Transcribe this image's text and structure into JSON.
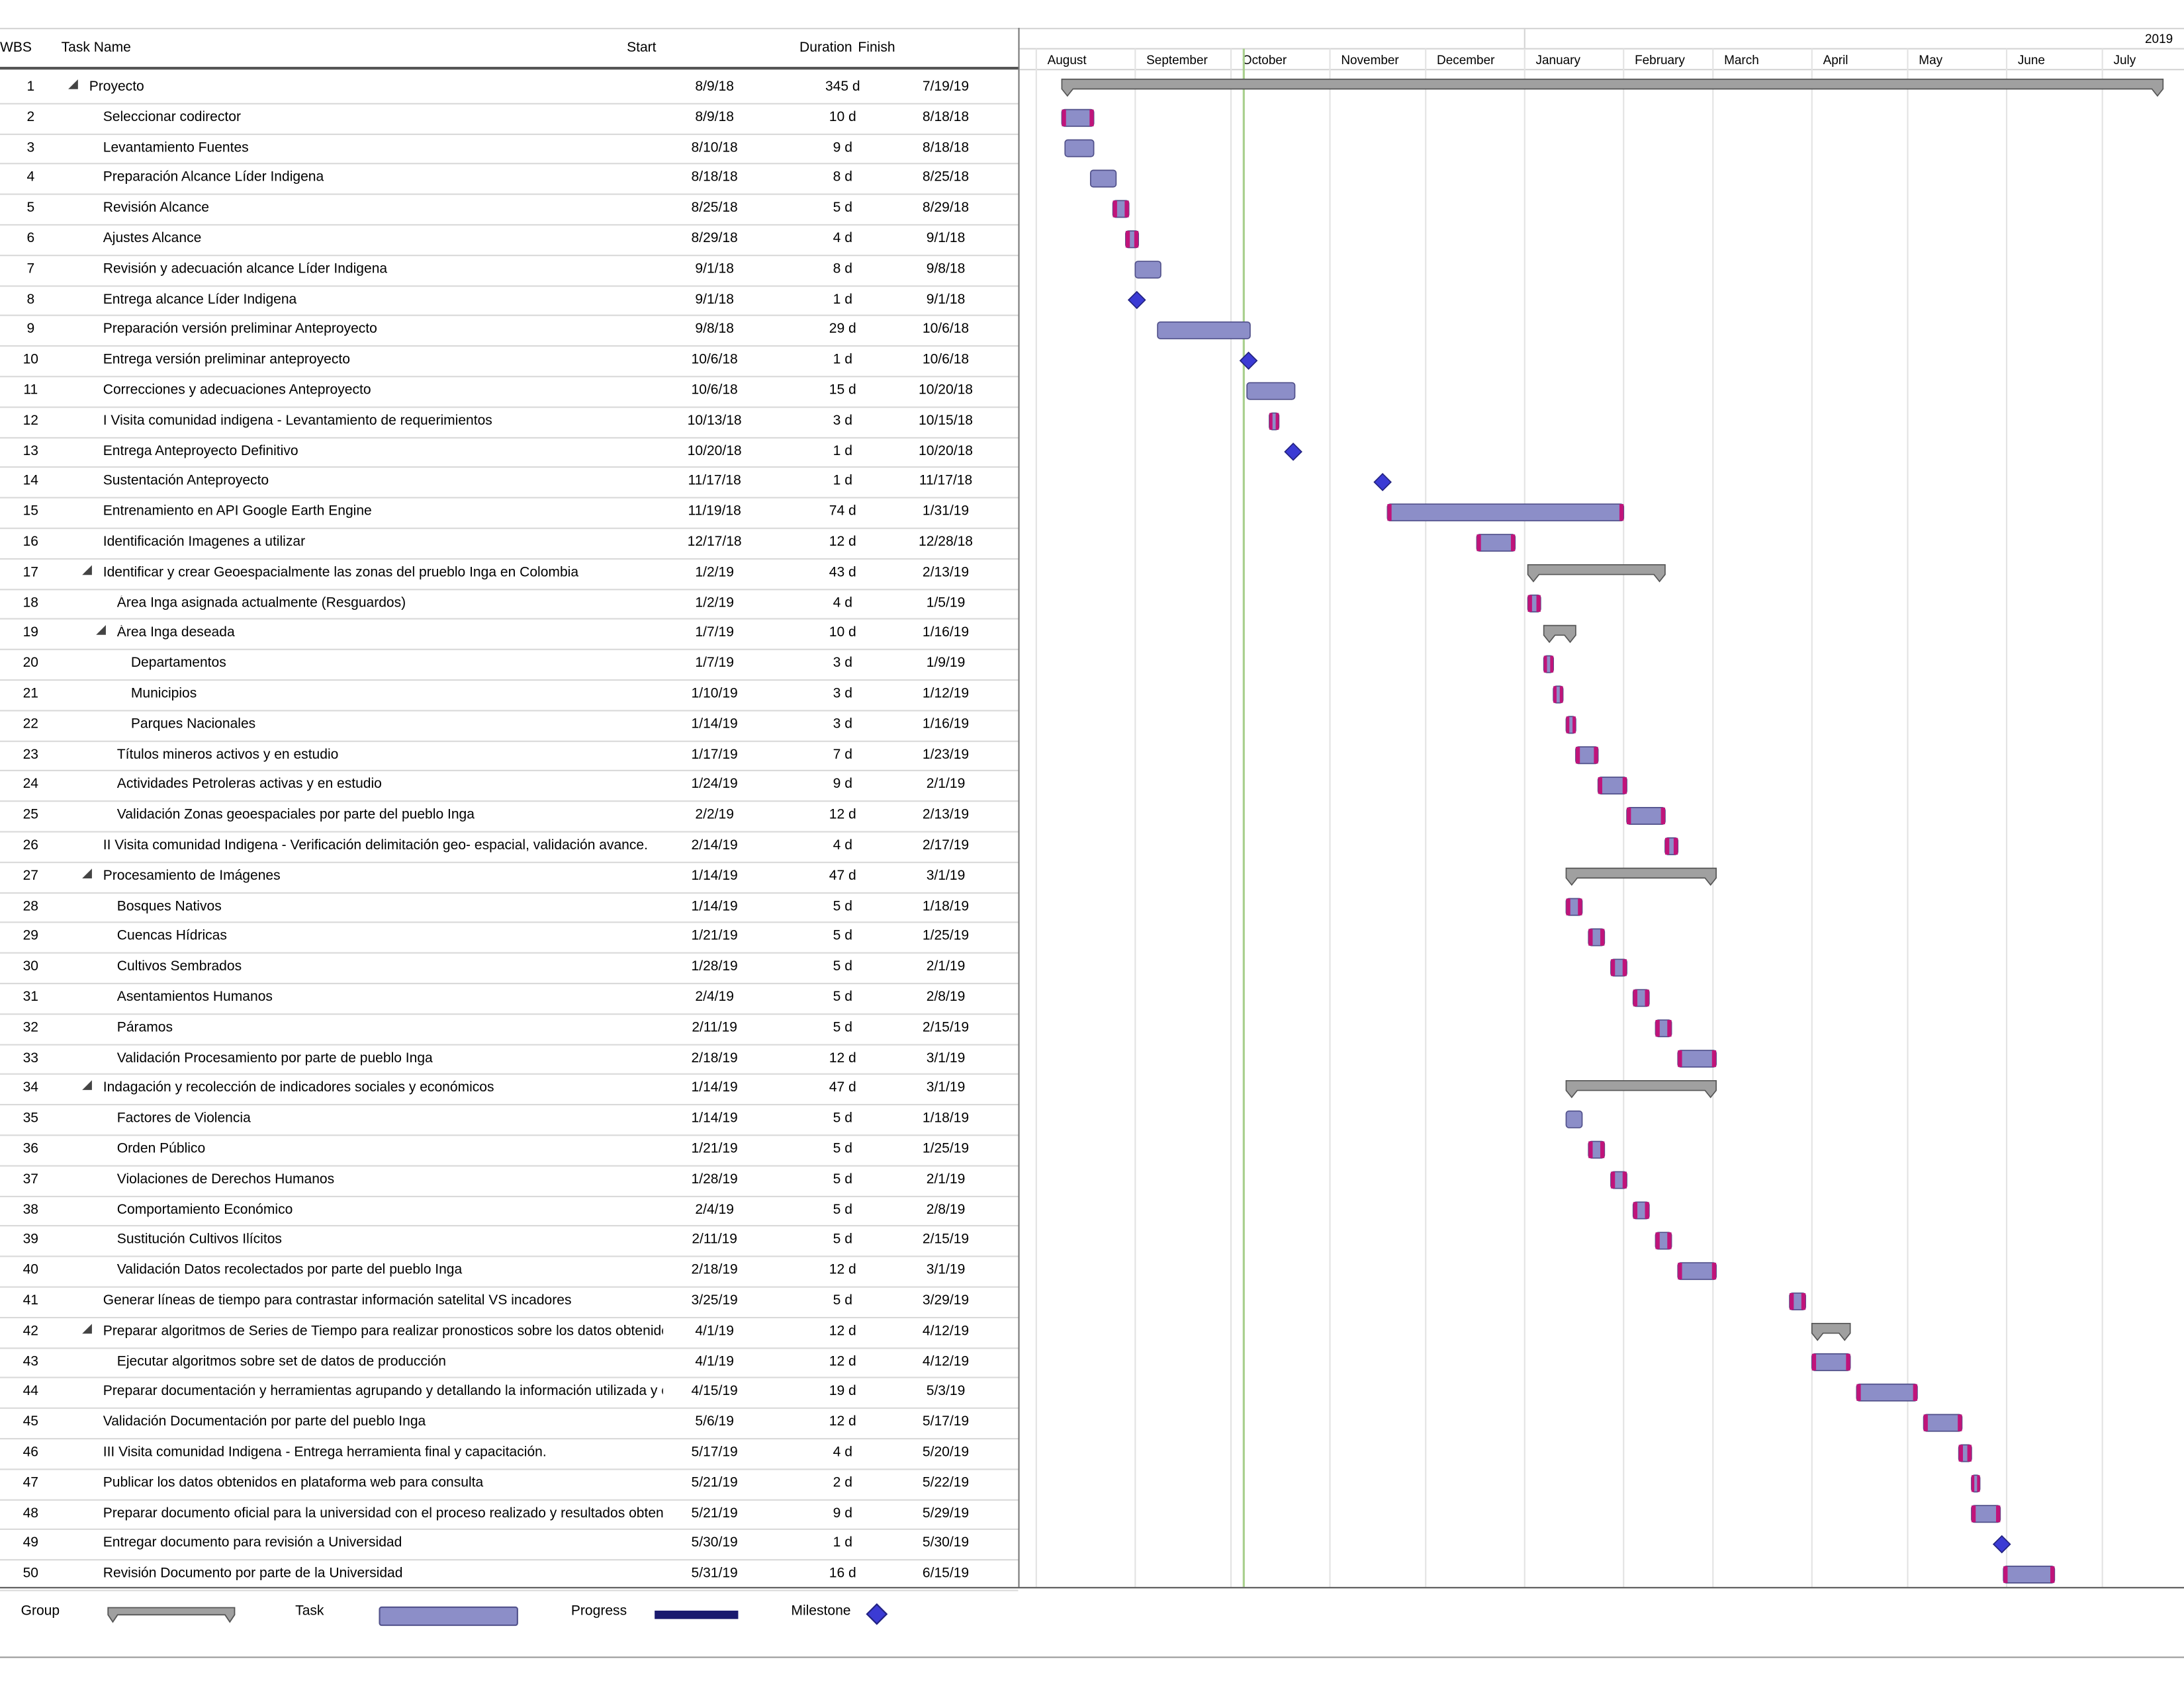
{
  "header": {
    "wbs": "WBS",
    "task_name": "Task Name",
    "start": "Start",
    "duration": "Duration",
    "finish": "Finish",
    "year_label": "2019",
    "months": [
      "August",
      "September",
      "October",
      "November",
      "December",
      "January",
      "February",
      "March",
      "April",
      "May",
      "June",
      "July"
    ]
  },
  "timeline": {
    "start_date": "2018-08-01",
    "end_date": "2019-07-31",
    "today_line_date": "2018-10-05"
  },
  "tasks": [
    {
      "wbs": "1",
      "name": "Proyecto",
      "start": "8/9/18",
      "duration": "345 d",
      "finish": "7/19/19",
      "level": 0,
      "type": "group"
    },
    {
      "wbs": "2",
      "name": "Seleccionar codirector",
      "start": "8/9/18",
      "duration": "10 d",
      "finish": "8/18/18",
      "level": 1,
      "type": "critical"
    },
    {
      "wbs": "3",
      "name": "Levantamiento Fuentes",
      "start": "8/10/18",
      "duration": "9 d",
      "finish": "8/18/18",
      "level": 1,
      "type": "task"
    },
    {
      "wbs": "4",
      "name": "Preparación Alcance  Líder Indigena",
      "start": "8/18/18",
      "duration": "8 d",
      "finish": "8/25/18",
      "level": 1,
      "type": "task"
    },
    {
      "wbs": "5",
      "name": "Revisión Alcance",
      "start": "8/25/18",
      "duration": "5 d",
      "finish": "8/29/18",
      "level": 1,
      "type": "critical"
    },
    {
      "wbs": "6",
      "name": "Ajustes Alcance",
      "start": "8/29/18",
      "duration": "4 d",
      "finish": "9/1/18",
      "level": 1,
      "type": "critical"
    },
    {
      "wbs": "7",
      "name": "Revisión y adecuación alcance Líder Indigena",
      "start": "9/1/18",
      "duration": "8 d",
      "finish": "9/8/18",
      "level": 1,
      "type": "task"
    },
    {
      "wbs": "8",
      "name": "Entrega alcance Líder Indigena",
      "start": "9/1/18",
      "duration": "1 d",
      "finish": "9/1/18",
      "level": 1,
      "type": "milestone"
    },
    {
      "wbs": "9",
      "name": "Preparación versión preliminar Anteproyecto",
      "start": "9/8/18",
      "duration": "29 d",
      "finish": "10/6/18",
      "level": 1,
      "type": "task"
    },
    {
      "wbs": "10",
      "name": "Entrega versión preliminar anteproyecto",
      "start": "10/6/18",
      "duration": "1 d",
      "finish": "10/6/18",
      "level": 1,
      "type": "milestone"
    },
    {
      "wbs": "11",
      "name": "Correcciones y adecuaciones Anteproyecto",
      "start": "10/6/18",
      "duration": "15 d",
      "finish": "10/20/18",
      "level": 1,
      "type": "task"
    },
    {
      "wbs": "12",
      "name": "I Visita comunidad indigena - Levantamiento de requerimientos",
      "start": "10/13/18",
      "duration": "3 d",
      "finish": "10/15/18",
      "level": 1,
      "type": "critical"
    },
    {
      "wbs": "13",
      "name": "Entrega Anteproyecto Definitivo",
      "start": "10/20/18",
      "duration": "1 d",
      "finish": "10/20/18",
      "level": 1,
      "type": "milestone"
    },
    {
      "wbs": "14",
      "name": "Sustentación Anteproyecto",
      "start": "11/17/18",
      "duration": "1 d",
      "finish": "11/17/18",
      "level": 1,
      "type": "milestone"
    },
    {
      "wbs": "15",
      "name": "Entrenamiento en API Google Earth Engine",
      "start": "11/19/18",
      "duration": "74 d",
      "finish": "1/31/19",
      "level": 1,
      "type": "critical"
    },
    {
      "wbs": "16",
      "name": "Identificación Imagenes a utilizar",
      "start": "12/17/18",
      "duration": "12 d",
      "finish": "12/28/18",
      "level": 1,
      "type": "critical"
    },
    {
      "wbs": "17",
      "name": "Identificar y crear Geoespacialmente  las zonas del prueblo Inga en Colombia",
      "start": "1/2/19",
      "duration": "43 d",
      "finish": "2/13/19",
      "level": 1,
      "type": "group"
    },
    {
      "wbs": "18",
      "name": "Área Inga asignada actualmente (Resguardos)",
      "start": "1/2/19",
      "duration": "4 d",
      "finish": "1/5/19",
      "level": 2,
      "type": "critical"
    },
    {
      "wbs": "19",
      "name": "Área Inga deseada",
      "start": "1/7/19",
      "duration": "10 d",
      "finish": "1/16/19",
      "level": 2,
      "type": "group"
    },
    {
      "wbs": "20",
      "name": "Departamentos",
      "start": "1/7/19",
      "duration": "3 d",
      "finish": "1/9/19",
      "level": 3,
      "type": "critical"
    },
    {
      "wbs": "21",
      "name": "Municipios",
      "start": "1/10/19",
      "duration": "3 d",
      "finish": "1/12/19",
      "level": 3,
      "type": "critical"
    },
    {
      "wbs": "22",
      "name": "Parques Nacionales",
      "start": "1/14/19",
      "duration": "3 d",
      "finish": "1/16/19",
      "level": 3,
      "type": "critical"
    },
    {
      "wbs": "23",
      "name": "Títulos mineros activos y en estudio",
      "start": "1/17/19",
      "duration": "7 d",
      "finish": "1/23/19",
      "level": 2,
      "type": "critical"
    },
    {
      "wbs": "24",
      "name": "Actividades Petroleras activas y en estudio",
      "start": "1/24/19",
      "duration": "9 d",
      "finish": "2/1/19",
      "level": 2,
      "type": "critical"
    },
    {
      "wbs": "25",
      "name": "Validación Zonas geoespaciales por parte del pueblo Inga",
      "start": "2/2/19",
      "duration": "12 d",
      "finish": "2/13/19",
      "level": 2,
      "type": "critical"
    },
    {
      "wbs": "26",
      "name": "II Visita comunidad Indigena - Verificación delimitación geo- espacial, validación avance.",
      "start": "2/14/19",
      "duration": "4 d",
      "finish": "2/17/19",
      "level": 1,
      "type": "critical"
    },
    {
      "wbs": "27",
      "name": "Procesamiento de Imágenes",
      "start": "1/14/19",
      "duration": "47 d",
      "finish": "3/1/19",
      "level": 1,
      "type": "group"
    },
    {
      "wbs": "28",
      "name": "Bosques Nativos",
      "start": "1/14/19",
      "duration": "5 d",
      "finish": "1/18/19",
      "level": 2,
      "type": "critical"
    },
    {
      "wbs": "29",
      "name": "Cuencas Hídricas",
      "start": "1/21/19",
      "duration": "5 d",
      "finish": "1/25/19",
      "level": 2,
      "type": "critical"
    },
    {
      "wbs": "30",
      "name": "Cultivos Sembrados",
      "start": "1/28/19",
      "duration": "5 d",
      "finish": "2/1/19",
      "level": 2,
      "type": "critical"
    },
    {
      "wbs": "31",
      "name": "Asentamientos Humanos",
      "start": "2/4/19",
      "duration": "5 d",
      "finish": "2/8/19",
      "level": 2,
      "type": "critical"
    },
    {
      "wbs": "32",
      "name": "Páramos",
      "start": "2/11/19",
      "duration": "5 d",
      "finish": "2/15/19",
      "level": 2,
      "type": "critical"
    },
    {
      "wbs": "33",
      "name": "Validación Procesamiento por parte de pueblo Inga",
      "start": "2/18/19",
      "duration": "12 d",
      "finish": "3/1/19",
      "level": 2,
      "type": "critical"
    },
    {
      "wbs": "34",
      "name": "Indagación y recolección de indicadores sociales y económicos",
      "start": "1/14/19",
      "duration": "47 d",
      "finish": "3/1/19",
      "level": 1,
      "type": "group"
    },
    {
      "wbs": "35",
      "name": "Factores de Violencia",
      "start": "1/14/19",
      "duration": "5 d",
      "finish": "1/18/19",
      "level": 2,
      "type": "task"
    },
    {
      "wbs": "36",
      "name": "Orden Público",
      "start": "1/21/19",
      "duration": "5 d",
      "finish": "1/25/19",
      "level": 2,
      "type": "critical"
    },
    {
      "wbs": "37",
      "name": "Violaciones de Derechos Humanos",
      "start": "1/28/19",
      "duration": "5 d",
      "finish": "2/1/19",
      "level": 2,
      "type": "critical"
    },
    {
      "wbs": "38",
      "name": "Comportamiento Económico",
      "start": "2/4/19",
      "duration": "5 d",
      "finish": "2/8/19",
      "level": 2,
      "type": "critical"
    },
    {
      "wbs": "39",
      "name": "Sustitución Cultivos Ilícitos",
      "start": "2/11/19",
      "duration": "5 d",
      "finish": "2/15/19",
      "level": 2,
      "type": "critical"
    },
    {
      "wbs": "40",
      "name": "Validación Datos recolectados por parte del pueblo Inga",
      "start": "2/18/19",
      "duration": "12 d",
      "finish": "3/1/19",
      "level": 2,
      "type": "critical"
    },
    {
      "wbs": "41",
      "name": "Generar líneas de tiempo para contrastar información satelital VS incadores",
      "start": "3/25/19",
      "duration": "5 d",
      "finish": "3/29/19",
      "level": 1,
      "type": "critical"
    },
    {
      "wbs": "42",
      "name": "Preparar algoritmos de Series de Tiempo para realizar pronosticos sobre los datos obtenido",
      "start": "4/1/19",
      "duration": "12 d",
      "finish": "4/12/19",
      "level": 1,
      "type": "group"
    },
    {
      "wbs": "43",
      "name": "Ejecutar algoritmos sobre set de datos de producción",
      "start": "4/1/19",
      "duration": "12 d",
      "finish": "4/12/19",
      "level": 2,
      "type": "critical"
    },
    {
      "wbs": "44",
      "name": "Preparar documentación y herramientas agrupando y detallando la información utilizada y o",
      "start": "4/15/19",
      "duration": "19 d",
      "finish": "5/3/19",
      "level": 1,
      "type": "critical"
    },
    {
      "wbs": "45",
      "name": "Validación Documentación por parte del pueblo Inga",
      "start": "5/6/19",
      "duration": "12 d",
      "finish": "5/17/19",
      "level": 1,
      "type": "critical"
    },
    {
      "wbs": "46",
      "name": "III Visita comunidad Indigena - Entrega herramienta final y capacitación.",
      "start": "5/17/19",
      "duration": "4 d",
      "finish": "5/20/19",
      "level": 1,
      "type": "critical"
    },
    {
      "wbs": "47",
      "name": "Publicar los datos obtenidos en plataforma web para consulta",
      "start": "5/21/19",
      "duration": "2 d",
      "finish": "5/22/19",
      "level": 1,
      "type": "critical"
    },
    {
      "wbs": "48",
      "name": "Preparar documento oficial para la universidad con el proceso  realizado y resultados obteni",
      "start": "5/21/19",
      "duration": "9 d",
      "finish": "5/29/19",
      "level": 1,
      "type": "critical"
    },
    {
      "wbs": "49",
      "name": "Entregar documento para revisión a Universidad",
      "start": "5/30/19",
      "duration": "1 d",
      "finish": "5/30/19",
      "level": 1,
      "type": "milestone"
    },
    {
      "wbs": "50",
      "name": "Revisión Documento por parte de la Universidad",
      "start": "5/31/19",
      "duration": "16 d",
      "finish": "6/15/19",
      "level": 1,
      "type": "critical"
    }
  ],
  "legend": {
    "group": "Group",
    "task": "Task",
    "progress": "Progress",
    "milestone": "Milestone"
  },
  "colors": {
    "task_fill": "#8c8ec8",
    "task_border": "#50508a",
    "critical_edge": "#c0147a",
    "group_fill": "#a0a0a0",
    "milestone": "#3b3bd4",
    "progress": "#1a1a6e",
    "today_line": "#a8d08d"
  }
}
